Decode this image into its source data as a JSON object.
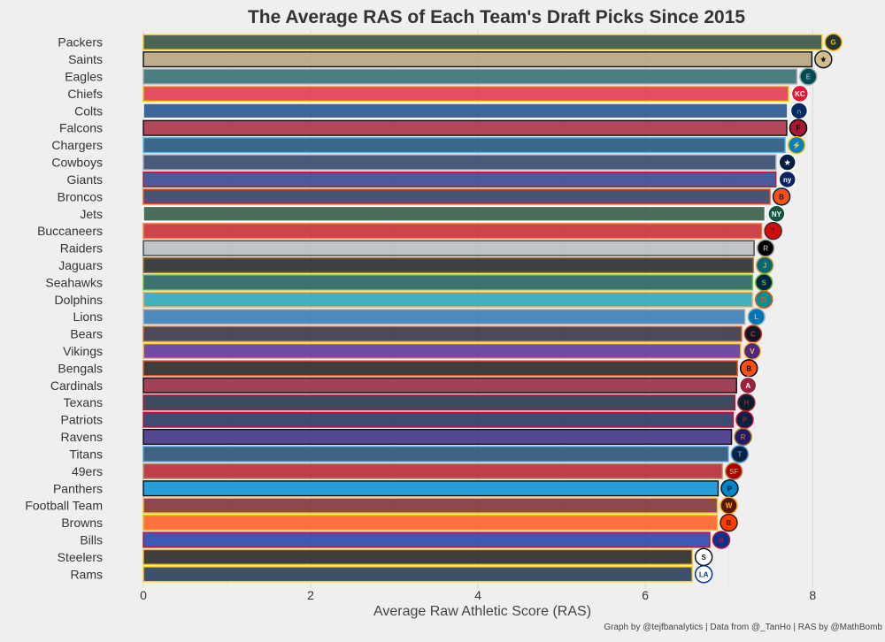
{
  "chart_data": {
    "type": "bar",
    "orientation": "horizontal",
    "title": "The Average RAS of Each Team's Draft Picks Since 2015",
    "xlabel": "Average Raw Athletic Score (RAS)",
    "ylabel": "",
    "xlim": [
      0,
      8.6
    ],
    "xticks": [
      0,
      2,
      4,
      6,
      8
    ],
    "grid": true,
    "caption": "Graph by @tejfbanalytics | Data from @_TanHo | RAS by @MathBomb",
    "categories": [
      "Packers",
      "Saints",
      "Eagles",
      "Chiefs",
      "Colts",
      "Falcons",
      "Chargers",
      "Cowboys",
      "Giants",
      "Broncos",
      "Jets",
      "Buccaneers",
      "Raiders",
      "Jaguars",
      "Seahawks",
      "Dolphins",
      "Lions",
      "Bears",
      "Vikings",
      "Bengals",
      "Cardinals",
      "Texans",
      "Patriots",
      "Ravens",
      "Titans",
      "49ers",
      "Panthers",
      "Football Team",
      "Browns",
      "Bills",
      "Steelers",
      "Rams"
    ],
    "values": [
      8.11,
      7.99,
      7.81,
      7.71,
      7.7,
      7.69,
      7.67,
      7.56,
      7.56,
      7.49,
      7.43,
      7.39,
      7.3,
      7.29,
      7.28,
      7.28,
      7.19,
      7.15,
      7.14,
      7.1,
      7.09,
      7.07,
      7.05,
      7.03,
      6.99,
      6.92,
      6.87,
      6.86,
      6.86,
      6.77,
      6.56,
      6.56
    ],
    "fill_colors": [
      "#2f4a3c",
      "#b5a07a",
      "#2e6a6c",
      "#e0304e",
      "#1f4e8c",
      "#a8283e",
      "#1d4f78",
      "#2b3f66",
      "#2e3f8a",
      "#2a3a5c",
      "#2e5640",
      "#c8262e",
      "#b8bcc0",
      "#1f2326",
      "#1f5a5c",
      "#23a4b4",
      "#2f78b4",
      "#2a2e40",
      "#5a2e96",
      "#1e1e1e",
      "#92243e",
      "#1e2e44",
      "#1e2f5a",
      "#3a2a82",
      "#1e4a70",
      "#b3202e",
      "#0090d8",
      "#7a2a2e",
      "#ff5a1e",
      "#1d3fa8",
      "#1e1e1e",
      "#1e3458"
    ],
    "edge_colors": [
      "#f2c200",
      "#111111",
      "#a5acaf",
      "#f5c400",
      "#ffffff",
      "#111111",
      "#4db8f0",
      "#a0a8b0",
      "#c8102e",
      "#fb4f14",
      "#ffffff",
      "#ff7a3a",
      "#444444",
      "#9f792c",
      "#69be28",
      "#ffb060",
      "#b0b7bc",
      "#f06020",
      "#ffc62f",
      "#fb4f14",
      "#111111",
      "#c8102e",
      "#c8102e",
      "#111111",
      "#4b92db",
      "#b3995d",
      "#111111",
      "#ffb612",
      "#ffb612",
      "#c8102e",
      "#ffb612",
      "#ffd100"
    ],
    "logos": [
      {
        "icon": "packers-logo-icon",
        "bg": "#203731",
        "fg": "#ffb612",
        "text": "G"
      },
      {
        "icon": "saints-logo-icon",
        "bg": "#d3bc8d",
        "fg": "#101820",
        "text": "⚜"
      },
      {
        "icon": "eagles-logo-icon",
        "bg": "#004c54",
        "fg": "#a5acaf",
        "text": "E"
      },
      {
        "icon": "chiefs-logo-icon",
        "bg": "#e31837",
        "fg": "#ffffff",
        "text": "KC"
      },
      {
        "icon": "colts-logo-icon",
        "bg": "#002c5f",
        "fg": "#ffffff",
        "text": "∩"
      },
      {
        "icon": "falcons-logo-icon",
        "bg": "#a71930",
        "fg": "#000000",
        "text": "F"
      },
      {
        "icon": "chargers-logo-icon",
        "bg": "#0080c6",
        "fg": "#ffc20e",
        "text": "⚡"
      },
      {
        "icon": "cowboys-logo-icon",
        "bg": "#041e42",
        "fg": "#ffffff",
        "text": "★"
      },
      {
        "icon": "giants-logo-icon",
        "bg": "#0b2265",
        "fg": "#ffffff",
        "text": "ny"
      },
      {
        "icon": "broncos-logo-icon",
        "bg": "#fb4f14",
        "fg": "#002244",
        "text": "B"
      },
      {
        "icon": "jets-logo-icon",
        "bg": "#125740",
        "fg": "#ffffff",
        "text": "NY"
      },
      {
        "icon": "buccaneers-logo-icon",
        "bg": "#d50a0a",
        "fg": "#34302b",
        "text": "T"
      },
      {
        "icon": "raiders-logo-icon",
        "bg": "#000000",
        "fg": "#a5acaf",
        "text": "R"
      },
      {
        "icon": "jaguars-logo-icon",
        "bg": "#006778",
        "fg": "#d7a22a",
        "text": "J"
      },
      {
        "icon": "seahawks-logo-icon",
        "bg": "#002244",
        "fg": "#69be28",
        "text": "S"
      },
      {
        "icon": "dolphins-logo-icon",
        "bg": "#008e97",
        "fg": "#fc4c02",
        "text": "D"
      },
      {
        "icon": "lions-logo-icon",
        "bg": "#0076b6",
        "fg": "#b0b7bc",
        "text": "L"
      },
      {
        "icon": "bears-logo-icon",
        "bg": "#0b162a",
        "fg": "#c83803",
        "text": "C"
      },
      {
        "icon": "vikings-logo-icon",
        "bg": "#4f2683",
        "fg": "#ffc62f",
        "text": "V"
      },
      {
        "icon": "bengals-logo-icon",
        "bg": "#fb4f14",
        "fg": "#000000",
        "text": "B"
      },
      {
        "icon": "cardinals-logo-icon",
        "bg": "#97233f",
        "fg": "#ffffff",
        "text": "A"
      },
      {
        "icon": "texans-logo-icon",
        "bg": "#03202f",
        "fg": "#a71930",
        "text": "H"
      },
      {
        "icon": "patriots-logo-icon",
        "bg": "#002244",
        "fg": "#c60c30",
        "text": "P"
      },
      {
        "icon": "ravens-logo-icon",
        "bg": "#241773",
        "fg": "#9e7c0c",
        "text": "R"
      },
      {
        "icon": "titans-logo-icon",
        "bg": "#0c2340",
        "fg": "#4b92db",
        "text": "T"
      },
      {
        "icon": "49ers-logo-icon",
        "bg": "#aa0000",
        "fg": "#b3995d",
        "text": "SF"
      },
      {
        "icon": "panthers-logo-icon",
        "bg": "#0085ca",
        "fg": "#101820",
        "text": "P"
      },
      {
        "icon": "football-team-logo-icon",
        "bg": "#5a1414",
        "fg": "#ffb612",
        "text": "W"
      },
      {
        "icon": "browns-logo-icon",
        "bg": "#ff3c00",
        "fg": "#311d00",
        "text": "B"
      },
      {
        "icon": "bills-logo-icon",
        "bg": "#00338d",
        "fg": "#c60c30",
        "text": "B"
      },
      {
        "icon": "steelers-logo-icon",
        "bg": "#ffffff",
        "fg": "#101820",
        "text": "S"
      },
      {
        "icon": "rams-logo-icon",
        "bg": "#ffffff",
        "fg": "#003594",
        "text": "LA"
      }
    ]
  }
}
